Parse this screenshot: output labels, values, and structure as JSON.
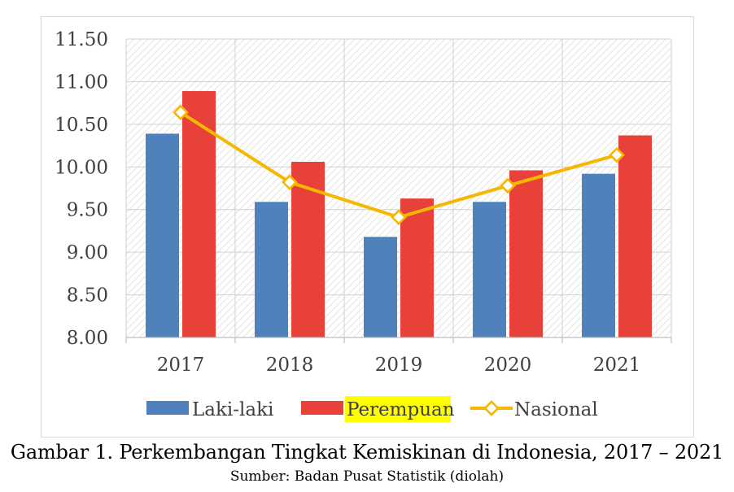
{
  "chart_data": {
    "type": "bar",
    "categories": [
      "2017",
      "2018",
      "2019",
      "2020",
      "2021"
    ],
    "series": [
      {
        "name": "Laki-laki",
        "type": "bar",
        "color": "#4f81bd",
        "values": [
          10.39,
          9.59,
          9.18,
          9.59,
          9.92
        ]
      },
      {
        "name": "Perempuan",
        "type": "bar",
        "color": "#e8413a",
        "values": [
          10.89,
          10.06,
          9.63,
          9.96,
          10.37
        ]
      },
      {
        "name": "Nasional",
        "type": "line",
        "color": "#f5b800",
        "values": [
          10.64,
          9.82,
          9.41,
          9.78,
          10.14
        ]
      }
    ],
    "yticks": [
      "8.00",
      "8.50",
      "9.00",
      "9.50",
      "10.00",
      "10.50",
      "11.00",
      "11.50"
    ],
    "ylim": [
      8.0,
      11.5
    ],
    "legend_position": "bottom",
    "legend_highlight_color": "#ffff00",
    "grid": true,
    "plot_background": "hatched"
  },
  "caption": {
    "title": "Gambar 1. Perkembangan Tingkat Kemiskinan di Indonesia, 2017 – 2021",
    "source": "Sumber: Badan Pusat Statistik (diolah)"
  }
}
